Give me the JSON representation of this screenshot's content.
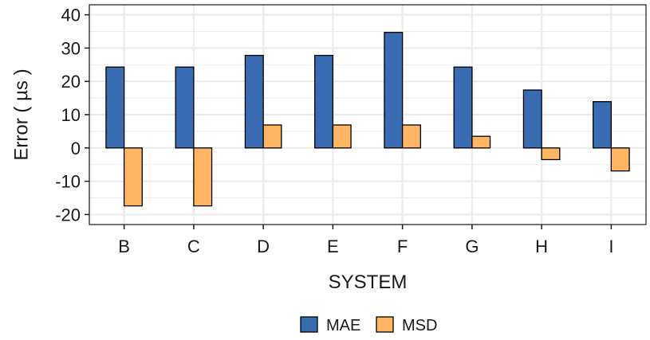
{
  "chart_data": {
    "type": "bar",
    "categories": [
      "B",
      "C",
      "D",
      "E",
      "F",
      "G",
      "H",
      "I"
    ],
    "series": [
      {
        "name": "MAE",
        "values": [
          24.3,
          24.3,
          27.8,
          27.8,
          34.7,
          24.3,
          17.4,
          13.9
        ],
        "color": "#3a6cb3"
      },
      {
        "name": "MSD",
        "values": [
          -17.4,
          -17.4,
          6.9,
          6.9,
          6.9,
          3.5,
          -3.5,
          -6.9
        ],
        "color": "#ffb562"
      }
    ],
    "title": "",
    "xlabel": "SYSTEM",
    "ylabel": "Error ( µs )",
    "ylim": [
      -23,
      43
    ],
    "yticks": [
      -20,
      -10,
      0,
      10,
      20,
      30,
      40
    ],
    "ytick_labels": [
      "-20",
      "-10",
      "0",
      "10",
      "20",
      "30",
      "40"
    ],
    "grid": true,
    "legend_position": "bottom",
    "colors": {
      "grid": "#ebebeb",
      "axis": "#1a1a1a",
      "bar_stroke": "#000000"
    }
  }
}
